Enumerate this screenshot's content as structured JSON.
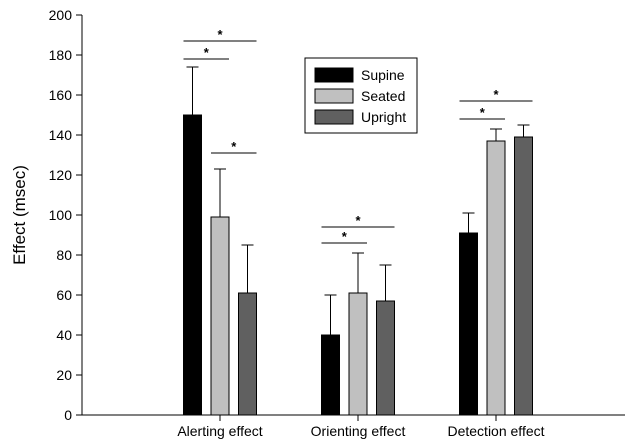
{
  "chart_data": {
    "type": "bar",
    "title": "",
    "xlabel": "",
    "ylabel": "Effect (msec)",
    "ylim": [
      0,
      200
    ],
    "yticks": [
      0,
      20,
      40,
      60,
      80,
      100,
      120,
      140,
      160,
      180,
      200
    ],
    "categories": [
      "Alerting effect",
      "Orienting effect",
      "Detection effect"
    ],
    "series": [
      {
        "name": "Supine",
        "color": "#000000",
        "values": [
          150,
          40,
          91
        ],
        "errors": [
          24,
          20,
          10
        ]
      },
      {
        "name": "Seated",
        "color": "#c0c0c0",
        "values": [
          99,
          61,
          137
        ],
        "errors": [
          24,
          20,
          6
        ]
      },
      {
        "name": "Upright",
        "color": "#606060",
        "values": [
          61,
          57,
          139
        ],
        "errors": [
          24,
          18,
          6
        ]
      }
    ],
    "legend_position": "top-center",
    "grid": false,
    "significance": [
      {
        "category": 0,
        "from_series": 0,
        "to_series": 1,
        "y": 178,
        "label": "*"
      },
      {
        "category": 0,
        "from_series": 0,
        "to_series": 2,
        "y": 187,
        "label": "*"
      },
      {
        "category": 0,
        "from_series": 1,
        "to_series": 2,
        "y": 131,
        "label": "*"
      },
      {
        "category": 1,
        "from_series": 0,
        "to_series": 1,
        "y": 86,
        "label": "*"
      },
      {
        "category": 1,
        "from_series": 0,
        "to_series": 2,
        "y": 94,
        "label": "*"
      },
      {
        "category": 2,
        "from_series": 0,
        "to_series": 1,
        "y": 148,
        "label": "*"
      },
      {
        "category": 2,
        "from_series": 0,
        "to_series": 2,
        "y": 157,
        "label": "*"
      }
    ]
  }
}
